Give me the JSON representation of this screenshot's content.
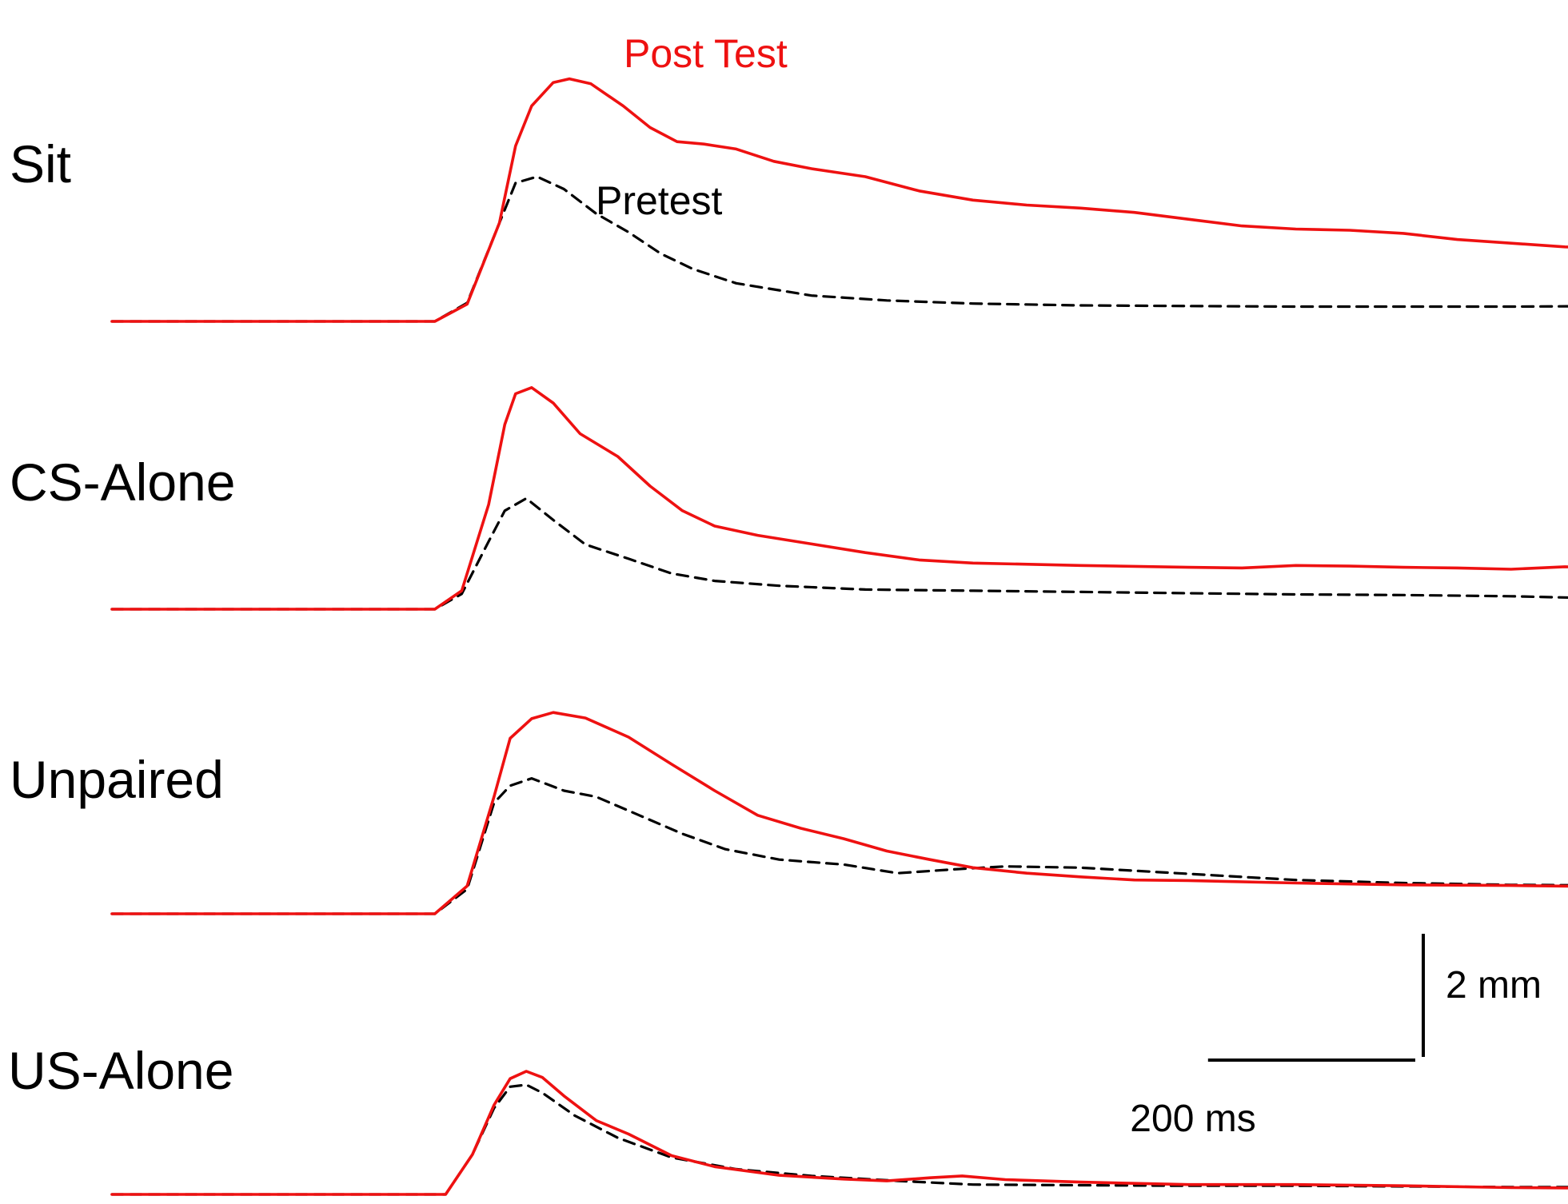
{
  "chart_data": {
    "type": "line",
    "legend": {
      "post_test": "Post Test",
      "pretest": "Pretest"
    },
    "colors": {
      "post_test": "#ee1111",
      "pretest": "#000000"
    },
    "scale_bar": {
      "time_label": "200 ms",
      "amplitude_label": "2 mm",
      "time_ms": 200,
      "amplitude_mm": 2
    },
    "x_unit": "ms",
    "y_unit": "mm",
    "traces": [
      {
        "label": "Sit",
        "post_test": [
          [
            0,
            0
          ],
          [
            300,
            0
          ],
          [
            330,
            0.28
          ],
          [
            360,
            1.6
          ],
          [
            375,
            2.85
          ],
          [
            390,
            3.5
          ],
          [
            410,
            3.88
          ],
          [
            425,
            3.94
          ],
          [
            445,
            3.86
          ],
          [
            475,
            3.5
          ],
          [
            500,
            3.15
          ],
          [
            525,
            2.92
          ],
          [
            550,
            2.88
          ],
          [
            580,
            2.8
          ],
          [
            615,
            2.6
          ],
          [
            650,
            2.48
          ],
          [
            700,
            2.35
          ],
          [
            750,
            2.12
          ],
          [
            800,
            1.97
          ],
          [
            850,
            1.89
          ],
          [
            900,
            1.84
          ],
          [
            950,
            1.77
          ],
          [
            1000,
            1.66
          ],
          [
            1050,
            1.55
          ],
          [
            1100,
            1.5
          ],
          [
            1150,
            1.48
          ],
          [
            1200,
            1.43
          ],
          [
            1250,
            1.33
          ],
          [
            1300,
            1.27
          ],
          [
            1350,
            1.21
          ],
          [
            1400,
            1.19
          ]
        ],
        "pretest": [
          [
            0,
            0
          ],
          [
            300,
            0
          ],
          [
            330,
            0.3
          ],
          [
            360,
            1.6
          ],
          [
            375,
            2.25
          ],
          [
            395,
            2.35
          ],
          [
            420,
            2.15
          ],
          [
            450,
            1.75
          ],
          [
            480,
            1.45
          ],
          [
            510,
            1.1
          ],
          [
            540,
            0.85
          ],
          [
            580,
            0.62
          ],
          [
            650,
            0.42
          ],
          [
            720,
            0.34
          ],
          [
            800,
            0.29
          ],
          [
            900,
            0.26
          ],
          [
            1000,
            0.25
          ],
          [
            1100,
            0.24
          ],
          [
            1200,
            0.24
          ],
          [
            1300,
            0.24
          ],
          [
            1400,
            0.25
          ]
        ]
      },
      {
        "label": "CS-Alone",
        "post_test": [
          [
            0,
            0
          ],
          [
            300,
            0
          ],
          [
            325,
            0.3
          ],
          [
            350,
            1.7
          ],
          [
            365,
            3.0
          ],
          [
            375,
            3.5
          ],
          [
            390,
            3.6
          ],
          [
            410,
            3.35
          ],
          [
            435,
            2.85
          ],
          [
            470,
            2.48
          ],
          [
            500,
            2.0
          ],
          [
            530,
            1.6
          ],
          [
            560,
            1.35
          ],
          [
            600,
            1.2
          ],
          [
            650,
            1.06
          ],
          [
            700,
            0.92
          ],
          [
            750,
            0.8
          ],
          [
            800,
            0.75
          ],
          [
            900,
            0.71
          ],
          [
            1000,
            0.68
          ],
          [
            1050,
            0.67
          ],
          [
            1100,
            0.71
          ],
          [
            1150,
            0.7
          ],
          [
            1200,
            0.68
          ],
          [
            1250,
            0.67
          ],
          [
            1300,
            0.65
          ],
          [
            1350,
            0.69
          ],
          [
            1400,
            0.66
          ],
          [
            1420,
            0.61
          ]
        ],
        "pretest": [
          [
            0,
            0
          ],
          [
            300,
            0
          ],
          [
            325,
            0.25
          ],
          [
            350,
            1.1
          ],
          [
            365,
            1.6
          ],
          [
            385,
            1.8
          ],
          [
            410,
            1.45
          ],
          [
            440,
            1.05
          ],
          [
            480,
            0.82
          ],
          [
            520,
            0.58
          ],
          [
            560,
            0.46
          ],
          [
            620,
            0.38
          ],
          [
            700,
            0.32
          ],
          [
            800,
            0.3
          ],
          [
            900,
            0.28
          ],
          [
            1000,
            0.26
          ],
          [
            1100,
            0.24
          ],
          [
            1200,
            0.23
          ],
          [
            1300,
            0.21
          ],
          [
            1400,
            0.17
          ]
        ]
      },
      {
        "label": "Unpaired",
        "post_test": [
          [
            0,
            0
          ],
          [
            300,
            0
          ],
          [
            330,
            0.45
          ],
          [
            355,
            1.9
          ],
          [
            370,
            2.85
          ],
          [
            390,
            3.17
          ],
          [
            410,
            3.27
          ],
          [
            440,
            3.18
          ],
          [
            480,
            2.87
          ],
          [
            520,
            2.43
          ],
          [
            560,
            2.0
          ],
          [
            600,
            1.6
          ],
          [
            640,
            1.39
          ],
          [
            680,
            1.22
          ],
          [
            720,
            1.02
          ],
          [
            760,
            0.88
          ],
          [
            800,
            0.75
          ],
          [
            850,
            0.66
          ],
          [
            900,
            0.6
          ],
          [
            950,
            0.55
          ],
          [
            1000,
            0.54
          ],
          [
            1100,
            0.5
          ],
          [
            1200,
            0.47
          ],
          [
            1300,
            0.46
          ],
          [
            1400,
            0.44
          ]
        ],
        "pretest": [
          [
            0,
            0
          ],
          [
            300,
            0
          ],
          [
            330,
            0.4
          ],
          [
            355,
            1.8
          ],
          [
            370,
            2.08
          ],
          [
            390,
            2.2
          ],
          [
            420,
            2.0
          ],
          [
            450,
            1.9
          ],
          [
            490,
            1.6
          ],
          [
            530,
            1.3
          ],
          [
            570,
            1.05
          ],
          [
            620,
            0.88
          ],
          [
            680,
            0.8
          ],
          [
            730,
            0.66
          ],
          [
            780,
            0.72
          ],
          [
            830,
            0.77
          ],
          [
            900,
            0.75
          ],
          [
            1000,
            0.65
          ],
          [
            1100,
            0.55
          ],
          [
            1200,
            0.5
          ],
          [
            1300,
            0.47
          ],
          [
            1400,
            0.46
          ]
        ]
      },
      {
        "label": "US-Alone",
        "post_test": [
          [
            0,
            0
          ],
          [
            310,
            0
          ],
          [
            335,
            0.65
          ],
          [
            355,
            1.45
          ],
          [
            370,
            1.88
          ],
          [
            385,
            2.0
          ],
          [
            400,
            1.9
          ],
          [
            420,
            1.6
          ],
          [
            450,
            1.2
          ],
          [
            480,
            0.98
          ],
          [
            520,
            0.63
          ],
          [
            560,
            0.45
          ],
          [
            620,
            0.31
          ],
          [
            680,
            0.25
          ],
          [
            720,
            0.22
          ],
          [
            760,
            0.27
          ],
          [
            790,
            0.3
          ],
          [
            830,
            0.24
          ],
          [
            900,
            0.2
          ],
          [
            1000,
            0.16
          ],
          [
            1100,
            0.16
          ],
          [
            1200,
            0.14
          ],
          [
            1300,
            0.11
          ],
          [
            1400,
            0.1
          ]
        ],
        "pretest": [
          [
            0,
            0
          ],
          [
            310,
            0
          ],
          [
            335,
            0.65
          ],
          [
            355,
            1.4
          ],
          [
            370,
            1.75
          ],
          [
            385,
            1.78
          ],
          [
            400,
            1.65
          ],
          [
            430,
            1.28
          ],
          [
            470,
            0.92
          ],
          [
            520,
            0.6
          ],
          [
            580,
            0.41
          ],
          [
            650,
            0.3
          ],
          [
            730,
            0.22
          ],
          [
            800,
            0.16
          ],
          [
            900,
            0.15
          ],
          [
            1000,
            0.14
          ],
          [
            1100,
            0.14
          ],
          [
            1200,
            0.13
          ],
          [
            1300,
            0.12
          ],
          [
            1400,
            0.12
          ]
        ]
      }
    ]
  }
}
